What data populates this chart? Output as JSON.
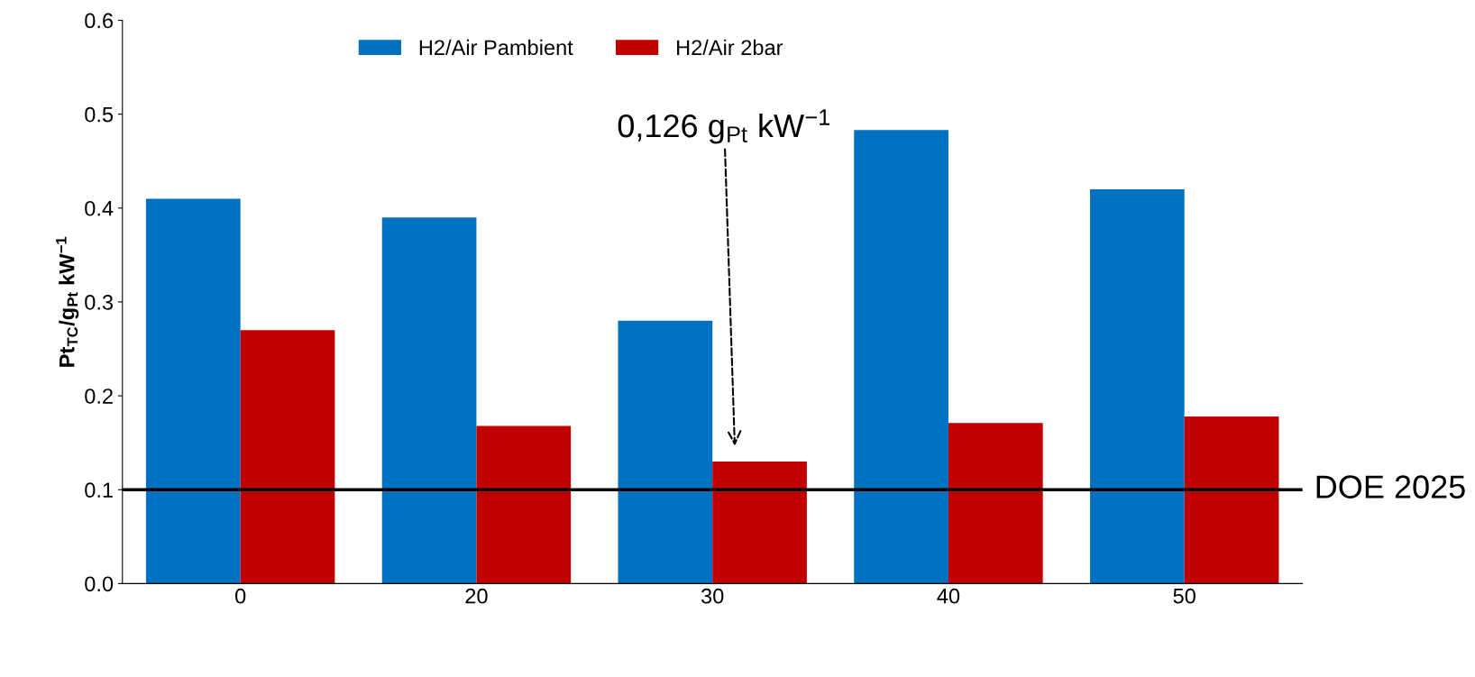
{
  "chart_data": {
    "type": "bar",
    "ylabel": "Pt$_{TC}$/g$_{Pt}$ kW$^{−1}$",
    "categories": [
      "0",
      "20",
      "30",
      "40",
      "50"
    ],
    "series": [
      {
        "name": "H2/Air Pambient",
        "color": "#0070c0",
        "values": [
          0.41,
          0.39,
          0.28,
          0.483,
          0.42
        ]
      },
      {
        "name": "H2/Air 2bar",
        "color": "#c00000",
        "values": [
          0.27,
          0.168,
          0.13,
          0.171,
          0.178
        ]
      }
    ],
    "ylim": [
      0,
      0.6
    ],
    "yticks": [
      {
        "value": 0,
        "label": "0.0"
      },
      0.1,
      0.2,
      0.3,
      0.4,
      0.5,
      0.6
    ],
    "ref_lines": [
      {
        "axis": "y",
        "value": 0.1,
        "label": "DOE 2025",
        "color": "#000000"
      }
    ],
    "annotations": [
      "0,126 g$_{Pt}$ kW$^{−1}$"
    ],
    "legend": "top",
    "grid": false
  }
}
